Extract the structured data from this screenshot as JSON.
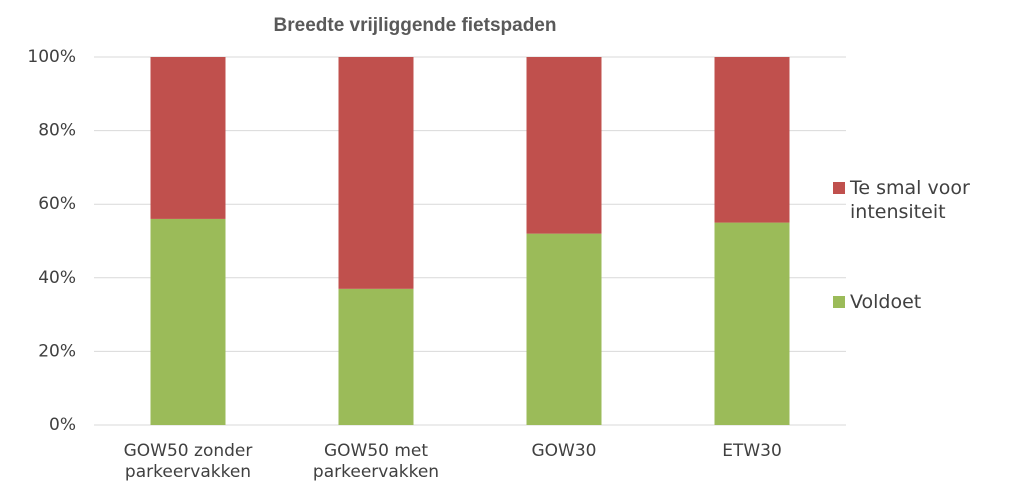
{
  "chart_data": {
    "type": "stacked_bar",
    "title": "Breedte vrijliggende fietspaden",
    "categories": [
      "GOW50 zonder parkeervakken",
      "GOW50 met parkeervakken",
      "GOW30",
      "ETW30"
    ],
    "series": [
      {
        "name": "Voldoet",
        "color": "#9bbb59",
        "values": [
          56,
          37,
          52,
          55
        ]
      },
      {
        "name": "Te smal voor intensiteit",
        "color": "#c0504d",
        "values": [
          44,
          63,
          48,
          45
        ]
      }
    ],
    "ylim": [
      0,
      100
    ],
    "yticks": [
      {
        "value": 0,
        "label": "0%"
      },
      {
        "value": 20,
        "label": "20%"
      },
      {
        "value": 40,
        "label": "40%"
      },
      {
        "value": 60,
        "label": "60%"
      },
      {
        "value": 80,
        "label": "80%"
      },
      {
        "value": 100,
        "label": "100%"
      }
    ],
    "grid": true,
    "legend": "right"
  }
}
